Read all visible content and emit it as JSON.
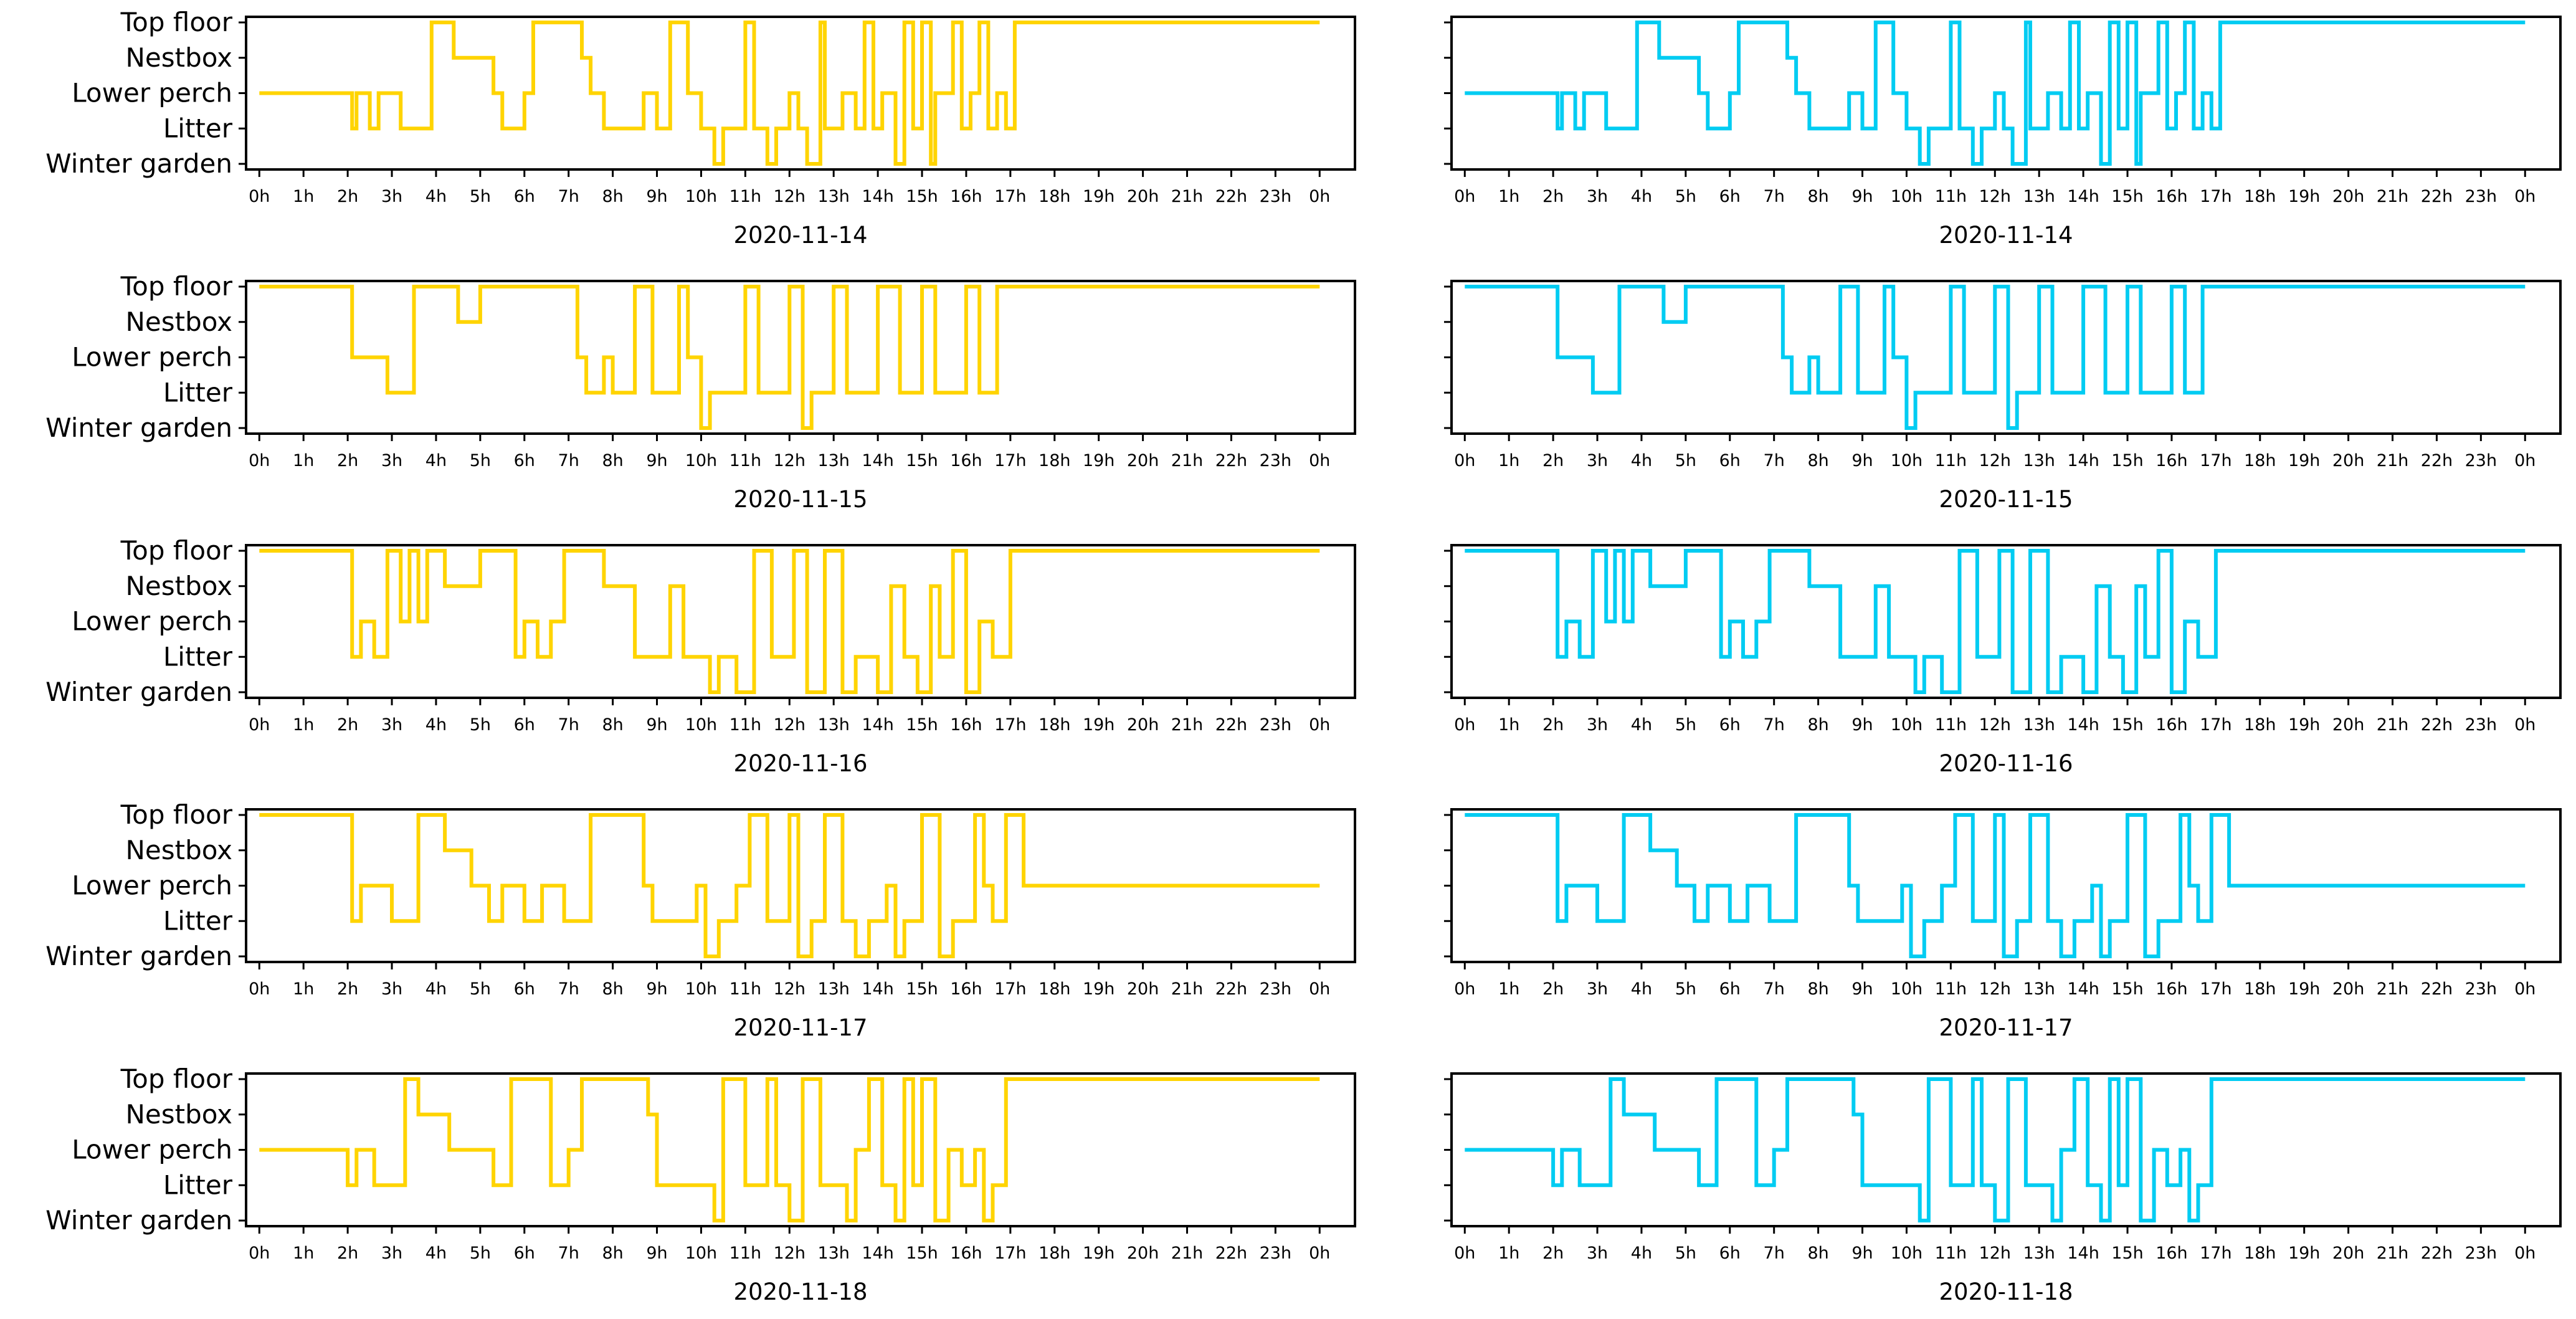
{
  "chart_data": {
    "type": "line",
    "line_style": "step",
    "title": "",
    "y_categories": [
      "Winter garden",
      "Litter",
      "Lower perch",
      "Nestbox",
      "Top floor"
    ],
    "x_ticks": [
      "0h",
      "1h",
      "2h",
      "3h",
      "4h",
      "5h",
      "6h",
      "7h",
      "8h",
      "9h",
      "10h",
      "11h",
      "12h",
      "13h",
      "14h",
      "15h",
      "16h",
      "17h",
      "18h",
      "19h",
      "20h",
      "21h",
      "22h",
      "23h",
      "0h"
    ],
    "xlim": [
      -0.3,
      24.8
    ],
    "ylim": [
      0,
      4
    ],
    "grid": false,
    "columns": [
      {
        "name": "left",
        "color": "#FFD400",
        "show_y_labels": true
      },
      {
        "name": "right",
        "color": "#00CCF2",
        "show_y_labels": false
      }
    ],
    "days": [
      {
        "date": "2020-11-14",
        "series": [
          [
            0,
            2
          ],
          [
            2.1,
            1
          ],
          [
            2.2,
            2
          ],
          [
            2.5,
            1
          ],
          [
            2.7,
            2
          ],
          [
            3.2,
            1
          ],
          [
            3.9,
            4
          ],
          [
            4.3,
            4
          ],
          [
            4.4,
            3
          ],
          [
            5.3,
            2
          ],
          [
            5.5,
            1
          ],
          [
            5.8,
            1
          ],
          [
            6.0,
            2
          ],
          [
            6.2,
            4
          ],
          [
            7.3,
            3
          ],
          [
            7.5,
            2
          ],
          [
            7.8,
            1
          ],
          [
            8.7,
            2
          ],
          [
            9.0,
            1
          ],
          [
            9.3,
            4
          ],
          [
            9.7,
            2
          ],
          [
            10.0,
            1
          ],
          [
            10.3,
            0
          ],
          [
            10.5,
            1
          ],
          [
            11.0,
            4
          ],
          [
            11.2,
            1
          ],
          [
            11.5,
            0
          ],
          [
            11.7,
            1
          ],
          [
            12.0,
            2
          ],
          [
            12.2,
            1
          ],
          [
            12.4,
            0
          ],
          [
            12.7,
            4
          ],
          [
            12.8,
            1
          ],
          [
            13.2,
            2
          ],
          [
            13.5,
            1
          ],
          [
            13.7,
            4
          ],
          [
            13.9,
            1
          ],
          [
            14.1,
            2
          ],
          [
            14.4,
            0
          ],
          [
            14.6,
            4
          ],
          [
            14.8,
            1
          ],
          [
            15.0,
            4
          ],
          [
            15.2,
            0
          ],
          [
            15.3,
            2
          ],
          [
            15.7,
            4
          ],
          [
            15.9,
            1
          ],
          [
            16.1,
            2
          ],
          [
            16.3,
            4
          ],
          [
            16.5,
            1
          ],
          [
            16.7,
            2
          ],
          [
            16.9,
            1
          ],
          [
            17.1,
            4
          ],
          [
            24,
            4
          ]
        ]
      },
      {
        "date": "2020-11-15",
        "series": [
          [
            0,
            4
          ],
          [
            2.1,
            2
          ],
          [
            2.3,
            2
          ],
          [
            2.9,
            1
          ],
          [
            3.5,
            4
          ],
          [
            4.5,
            3
          ],
          [
            5.0,
            4
          ],
          [
            6.8,
            4
          ],
          [
            7.2,
            2
          ],
          [
            7.4,
            1
          ],
          [
            7.8,
            2
          ],
          [
            8.0,
            1
          ],
          [
            8.5,
            4
          ],
          [
            8.9,
            1
          ],
          [
            9.5,
            4
          ],
          [
            9.7,
            2
          ],
          [
            10.0,
            0
          ],
          [
            10.2,
            1
          ],
          [
            11.0,
            4
          ],
          [
            11.3,
            1
          ],
          [
            12.0,
            4
          ],
          [
            12.3,
            0
          ],
          [
            12.5,
            1
          ],
          [
            13.0,
            4
          ],
          [
            13.3,
            1
          ],
          [
            14.0,
            4
          ],
          [
            14.5,
            1
          ],
          [
            15.0,
            4
          ],
          [
            15.3,
            1
          ],
          [
            16.0,
            4
          ],
          [
            16.3,
            1
          ],
          [
            16.7,
            4
          ],
          [
            17.0,
            4
          ],
          [
            24,
            4
          ]
        ]
      },
      {
        "date": "2020-11-16",
        "series": [
          [
            0,
            4
          ],
          [
            2.1,
            1
          ],
          [
            2.3,
            2
          ],
          [
            2.6,
            1
          ],
          [
            2.9,
            4
          ],
          [
            3.2,
            2
          ],
          [
            3.4,
            4
          ],
          [
            3.6,
            2
          ],
          [
            3.8,
            4
          ],
          [
            4.2,
            3
          ],
          [
            5.0,
            4
          ],
          [
            5.8,
            1
          ],
          [
            6.0,
            2
          ],
          [
            6.3,
            1
          ],
          [
            6.6,
            2
          ],
          [
            6.9,
            4
          ],
          [
            7.8,
            3
          ],
          [
            8.5,
            1
          ],
          [
            9.3,
            3
          ],
          [
            9.6,
            1
          ],
          [
            10.2,
            0
          ],
          [
            10.4,
            1
          ],
          [
            10.8,
            0
          ],
          [
            11.2,
            4
          ],
          [
            11.6,
            1
          ],
          [
            12.1,
            4
          ],
          [
            12.4,
            0
          ],
          [
            12.8,
            4
          ],
          [
            13.2,
            0
          ],
          [
            13.5,
            1
          ],
          [
            14.0,
            0
          ],
          [
            14.3,
            3
          ],
          [
            14.6,
            1
          ],
          [
            14.9,
            0
          ],
          [
            15.2,
            3
          ],
          [
            15.4,
            1
          ],
          [
            15.7,
            4
          ],
          [
            16.0,
            0
          ],
          [
            16.3,
            2
          ],
          [
            16.6,
            1
          ],
          [
            17.0,
            4
          ],
          [
            24,
            4
          ]
        ]
      },
      {
        "date": "2020-11-17",
        "series": [
          [
            0,
            4
          ],
          [
            2.1,
            1
          ],
          [
            2.3,
            2
          ],
          [
            3.0,
            1
          ],
          [
            3.6,
            4
          ],
          [
            4.2,
            3
          ],
          [
            4.8,
            2
          ],
          [
            5.2,
            1
          ],
          [
            5.5,
            2
          ],
          [
            6.0,
            1
          ],
          [
            6.4,
            2
          ],
          [
            6.9,
            1
          ],
          [
            7.5,
            4
          ],
          [
            8.7,
            2
          ],
          [
            8.9,
            1
          ],
          [
            9.9,
            2
          ],
          [
            10.1,
            0
          ],
          [
            10.4,
            1
          ],
          [
            10.8,
            2
          ],
          [
            11.1,
            4
          ],
          [
            11.5,
            1
          ],
          [
            12.0,
            4
          ],
          [
            12.2,
            0
          ],
          [
            12.5,
            1
          ],
          [
            12.8,
            4
          ],
          [
            13.2,
            1
          ],
          [
            13.5,
            0
          ],
          [
            13.8,
            1
          ],
          [
            14.2,
            2
          ],
          [
            14.4,
            0
          ],
          [
            14.6,
            1
          ],
          [
            15.0,
            4
          ],
          [
            15.4,
            0
          ],
          [
            15.7,
            1
          ],
          [
            16.2,
            4
          ],
          [
            16.4,
            2
          ],
          [
            16.6,
            1
          ],
          [
            16.9,
            4
          ],
          [
            17.3,
            2
          ],
          [
            24,
            2
          ]
        ]
      },
      {
        "date": "2020-11-18",
        "series": [
          [
            0,
            2
          ],
          [
            2.0,
            1
          ],
          [
            2.2,
            2
          ],
          [
            2.6,
            1
          ],
          [
            3.3,
            4
          ],
          [
            3.6,
            3
          ],
          [
            4.3,
            2
          ],
          [
            5.3,
            1
          ],
          [
            5.7,
            4
          ],
          [
            6.6,
            1
          ],
          [
            7.0,
            2
          ],
          [
            7.3,
            4
          ],
          [
            8.8,
            3
          ],
          [
            9.0,
            1
          ],
          [
            10.3,
            0
          ],
          [
            10.5,
            4
          ],
          [
            11.0,
            1
          ],
          [
            11.5,
            4
          ],
          [
            11.7,
            1
          ],
          [
            12.0,
            0
          ],
          [
            12.3,
            4
          ],
          [
            12.7,
            1
          ],
          [
            13.3,
            0
          ],
          [
            13.5,
            2
          ],
          [
            13.8,
            4
          ],
          [
            14.1,
            1
          ],
          [
            14.4,
            0
          ],
          [
            14.6,
            4
          ],
          [
            14.8,
            1
          ],
          [
            15.0,
            4
          ],
          [
            15.3,
            0
          ],
          [
            15.6,
            2
          ],
          [
            15.9,
            1
          ],
          [
            16.2,
            2
          ],
          [
            16.4,
            0
          ],
          [
            16.6,
            1
          ],
          [
            16.9,
            4
          ],
          [
            24,
            4
          ]
        ]
      }
    ]
  }
}
